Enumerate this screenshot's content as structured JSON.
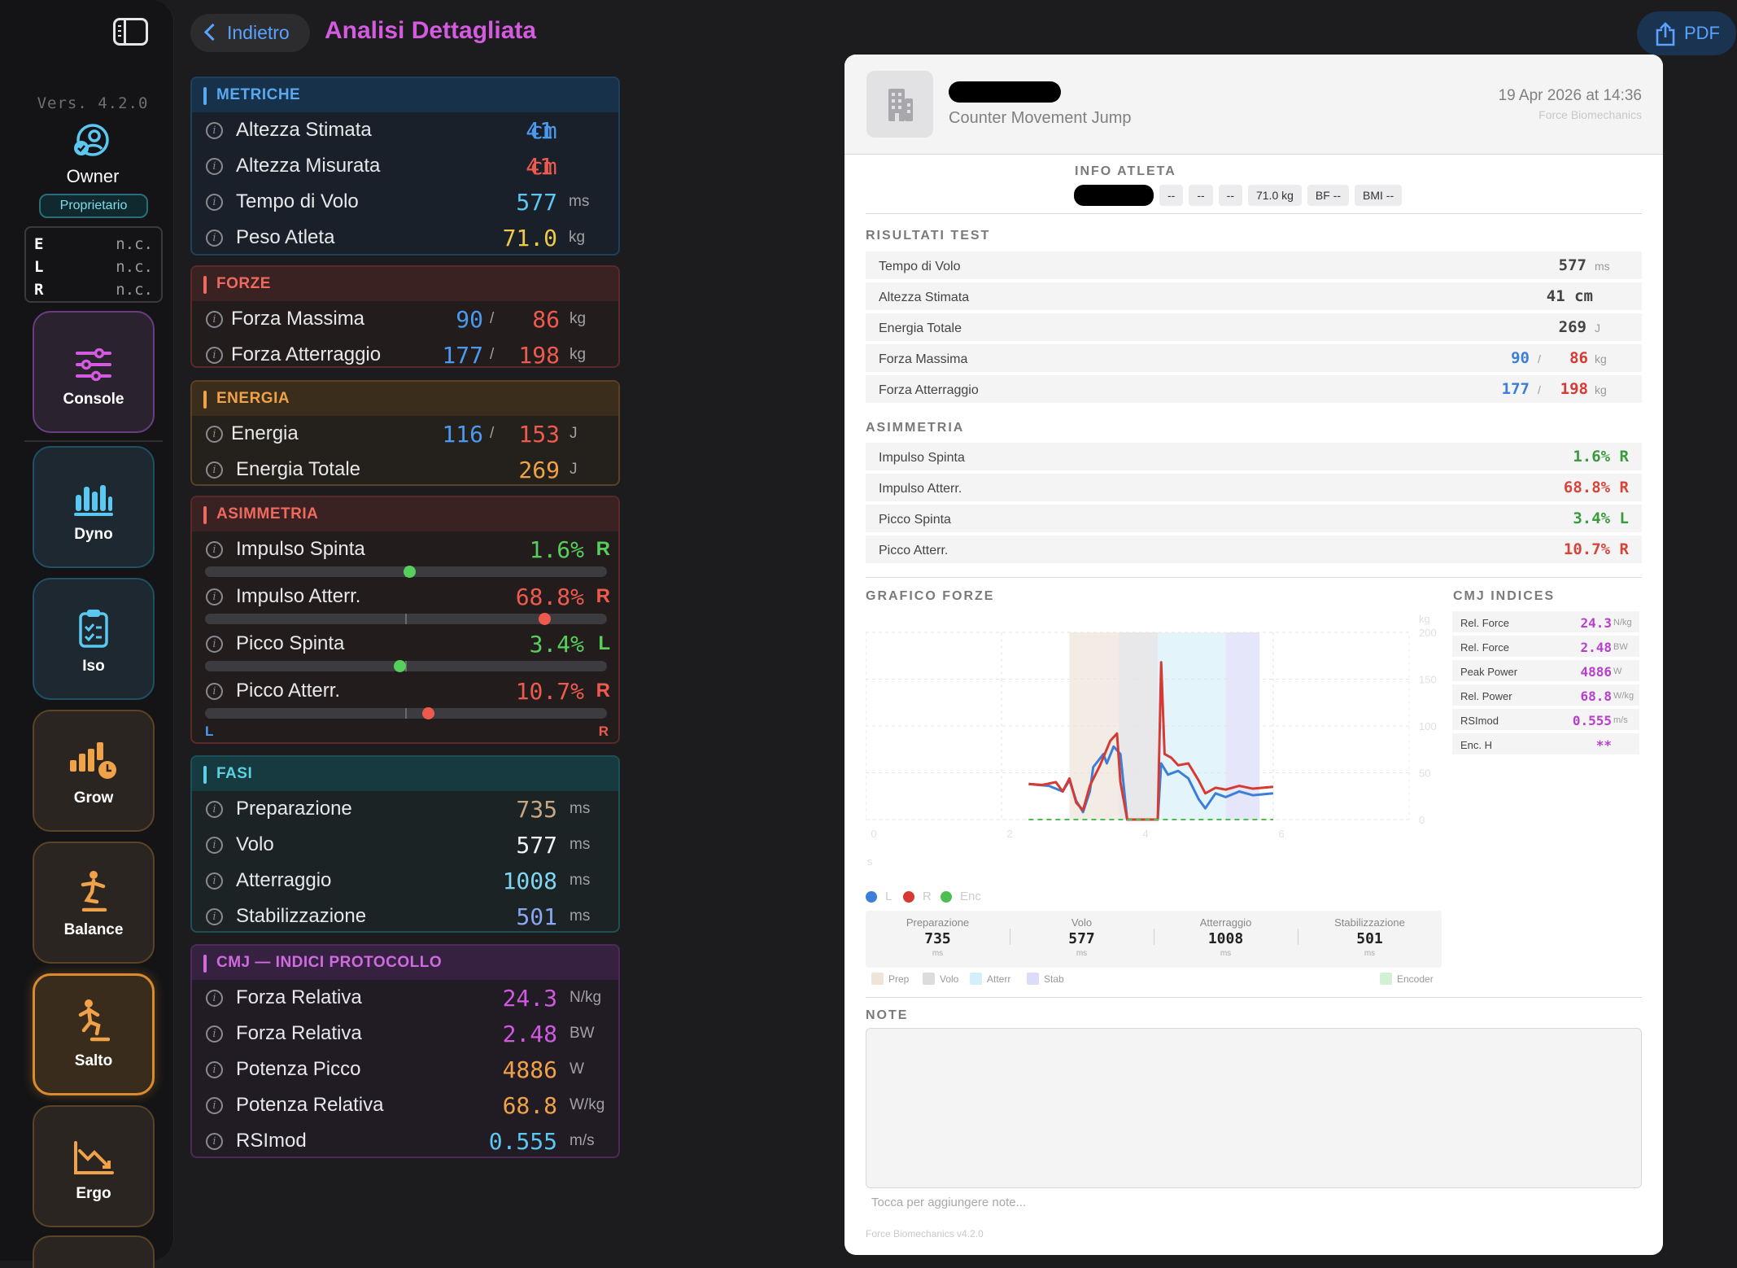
{
  "sidebar": {
    "version": "Vers. 4.2.0",
    "user_name": "Owner",
    "user_role": "Proprietario",
    "elr": [
      {
        "key": "E",
        "value": "n.c."
      },
      {
        "key": "L",
        "value": "n.c."
      },
      {
        "key": "R",
        "value": "n.c."
      }
    ],
    "nav": {
      "console": "Console",
      "dyno": "Dyno",
      "iso": "Iso",
      "grow": "Grow",
      "balance": "Balance",
      "salto": "Salto",
      "ergo": "Ergo"
    },
    "active": "Salto"
  },
  "header": {
    "back_label": "Indietro",
    "title": "Analisi Dettagliata",
    "pdf_label": "PDF"
  },
  "metriche": {
    "title": "METRICHE",
    "rows": [
      {
        "label": "Altezza Stimata",
        "value": "41",
        "unit": "cm",
        "color": "#4a9af0"
      },
      {
        "label": "Altezza Misurata",
        "value": "41",
        "unit": "cm",
        "color": "#ef5a4e"
      },
      {
        "label": "Tempo di Volo",
        "value": "577",
        "unit": "ms",
        "color": "#5ac8f0"
      },
      {
        "label": "Peso Atleta",
        "value": "71.0",
        "unit": "kg",
        "color": "#f0c84a"
      }
    ]
  },
  "forze": {
    "title": "FORZE",
    "rows": [
      {
        "label": "Forza Massima",
        "left": "90",
        "right": "86",
        "unit": "kg"
      },
      {
        "label": "Forza Atterraggio",
        "left": "177",
        "right": "198",
        "unit": "kg"
      }
    ]
  },
  "energia": {
    "title": "ENERGIA",
    "rows": [
      {
        "label": "Energia",
        "left": "116",
        "right": "153",
        "unit": "J"
      },
      {
        "label": "Energia Totale",
        "value": "269",
        "unit": "J"
      }
    ]
  },
  "asimmetria": {
    "title": "ASIMMETRIA",
    "rows": [
      {
        "label": "Impulso Spinta",
        "value": "1.6%",
        "side": "R",
        "color": "#56d05a",
        "dot_fraction": 0.508
      },
      {
        "label": "Impulso Atterr.",
        "value": "68.8%",
        "side": "R",
        "color": "#ef5a4e",
        "dot_fraction": 0.844
      },
      {
        "label": "Picco Spinta",
        "value": "3.4%",
        "side": "L",
        "color": "#56d05a",
        "dot_fraction": 0.483
      },
      {
        "label": "Picco Atterr.",
        "value": "10.7%",
        "side": "R",
        "color": "#ef5a4e",
        "dot_fraction": 0.554
      }
    ],
    "left_label": "L",
    "right_label": "R"
  },
  "fasi": {
    "title": "FASI",
    "rows": [
      {
        "label": "Preparazione",
        "value": "735",
        "unit": "ms",
        "color": "#c8a684"
      },
      {
        "label": "Volo",
        "value": "577",
        "unit": "ms",
        "color": "#f2f2f2"
      },
      {
        "label": "Atterraggio",
        "value": "1008",
        "unit": "ms",
        "color": "#7fd6f2"
      },
      {
        "label": "Stabilizzazione",
        "value": "501",
        "unit": "ms",
        "color": "#8aa6f2"
      }
    ]
  },
  "cmj": {
    "title": "CMJ — INDICI PROTOCOLLO",
    "rows": [
      {
        "label": "Forza Relativa",
        "value": "24.3",
        "unit": "N/kg",
        "color": "#cf5ae0"
      },
      {
        "label": "Forza Relativa",
        "value": "2.48",
        "unit": "BW",
        "color": "#cf5ae0"
      },
      {
        "label": "Potenza Picco",
        "value": "4886",
        "unit": "W",
        "color": "#f0a248"
      },
      {
        "label": "Potenza Relativa",
        "value": "68.8",
        "unit": "W/kg",
        "color": "#f0a248"
      },
      {
        "label": "RSImod",
        "value": "0.555",
        "unit": "m/s",
        "color": "#5ac8f0"
      }
    ]
  },
  "report": {
    "subtitle": "Counter Movement Jump",
    "date": "19 Apr 2026 at 14:36",
    "brand": "Force Biomechanics",
    "info_title": "INFO ATLETA",
    "info_chips": [
      "--",
      "--",
      "--",
      "71.0 kg",
      "BF --",
      "BMI --"
    ],
    "results_title": "RISULTATI TEST",
    "results": [
      {
        "label": "Tempo di Volo",
        "value": "577",
        "unit": "ms"
      },
      {
        "label": "Altezza Stimata",
        "value": "41 cm",
        "unit": ""
      },
      {
        "label": "Energia Totale",
        "value": "269",
        "unit": "J"
      },
      {
        "label": "Forza Massima",
        "left": "90",
        "right": "86",
        "unit": "kg"
      },
      {
        "label": "Forza Atterraggio",
        "left": "177",
        "right": "198",
        "unit": "kg"
      }
    ],
    "asym_title": "ASIMMETRIA",
    "asym": [
      {
        "label": "Impulso Spinta",
        "value": "1.6% R",
        "color": "#3a9a3e"
      },
      {
        "label": "Impulso Atterr.",
        "value": "68.8% R",
        "color": "#d6443a"
      },
      {
        "label": "Picco Spinta",
        "value": "3.4% L",
        "color": "#3a9a3e"
      },
      {
        "label": "Picco Atterr.",
        "value": "10.7% R",
        "color": "#d6443a"
      }
    ],
    "chart_title": "GRAFICO FORZE",
    "indices_title": "CMJ INDICES",
    "indices": [
      {
        "label": "Rel. Force",
        "value": "24.3",
        "unit": "N/kg"
      },
      {
        "label": "Rel. Force",
        "value": "2.48",
        "unit": "BW"
      },
      {
        "label": "Peak Power",
        "value": "4886",
        "unit": "W"
      },
      {
        "label": "Rel. Power",
        "value": "68.8",
        "unit": "W/kg"
      },
      {
        "label": "RSImod",
        "value": "0.555",
        "unit": "m/s"
      },
      {
        "label": "Enc. H",
        "value": "**",
        "unit": ""
      }
    ],
    "legend": [
      "L",
      "R",
      "Enc"
    ],
    "phases": [
      {
        "label": "Preparazione",
        "value": "735",
        "unit": "ms"
      },
      {
        "label": "Volo",
        "value": "577",
        "unit": "ms"
      },
      {
        "label": "Atterraggio",
        "value": "1008",
        "unit": "ms"
      },
      {
        "label": "Stabilizzazione",
        "value": "501",
        "unit": "ms"
      }
    ],
    "swatches": [
      "Prep",
      "Volo",
      "Atterr",
      "Stab",
      "Encoder"
    ],
    "notes_title": "NOTE",
    "notes_placeholder": "Tocca per aggiungere note...",
    "footer": "Force Biomechanics v4.2.0"
  },
  "chart_data": {
    "type": "line",
    "xlabel": "s",
    "ylabel": "kg",
    "xlim": [
      0,
      8
    ],
    "ylim": [
      0,
      200
    ],
    "x_ticks": [
      0,
      2,
      4,
      6
    ],
    "y_ticks": [
      0,
      50,
      100,
      150,
      200
    ],
    "phases": [
      {
        "name": "Prep",
        "start": 3.0,
        "end": 3.73
      },
      {
        "name": "Volo",
        "start": 3.73,
        "end": 4.3
      },
      {
        "name": "Atterr",
        "start": 4.3,
        "end": 5.3
      },
      {
        "name": "Stab",
        "start": 5.3,
        "end": 5.8
      }
    ],
    "series": [
      {
        "name": "L",
        "color": "#3b7fd9",
        "x": [
          2.4,
          2.7,
          2.9,
          3.0,
          3.1,
          3.2,
          3.3,
          3.35,
          3.5,
          3.55,
          3.65,
          3.75,
          3.85,
          4.0,
          4.2,
          4.3,
          4.35,
          4.45,
          4.6,
          4.75,
          4.9,
          5.0,
          5.15,
          5.3,
          5.5,
          5.7,
          6.0
        ],
        "y": [
          38,
          36,
          30,
          42,
          20,
          8,
          30,
          56,
          70,
          60,
          78,
          70,
          0,
          0,
          0,
          0,
          60,
          48,
          52,
          44,
          22,
          12,
          28,
          24,
          30,
          26,
          28
        ]
      },
      {
        "name": "R",
        "color": "#d63a32",
        "x": [
          2.4,
          2.6,
          2.8,
          2.9,
          3.0,
          3.1,
          3.2,
          3.3,
          3.45,
          3.6,
          3.7,
          3.75,
          3.85,
          4.0,
          4.2,
          4.3,
          4.35,
          4.4,
          4.5,
          4.6,
          4.75,
          4.9,
          5.0,
          5.15,
          5.3,
          5.5,
          5.7,
          6.0
        ],
        "y": [
          38,
          37,
          40,
          30,
          44,
          18,
          10,
          36,
          58,
          84,
          92,
          40,
          0,
          0,
          0,
          0,
          168,
          70,
          66,
          58,
          60,
          42,
          28,
          34,
          32,
          36,
          33,
          35
        ]
      },
      {
        "name": "Enc",
        "color": "#4cbf50",
        "x": [
          2.4,
          6.0
        ],
        "y": [
          0,
          0
        ]
      }
    ]
  }
}
